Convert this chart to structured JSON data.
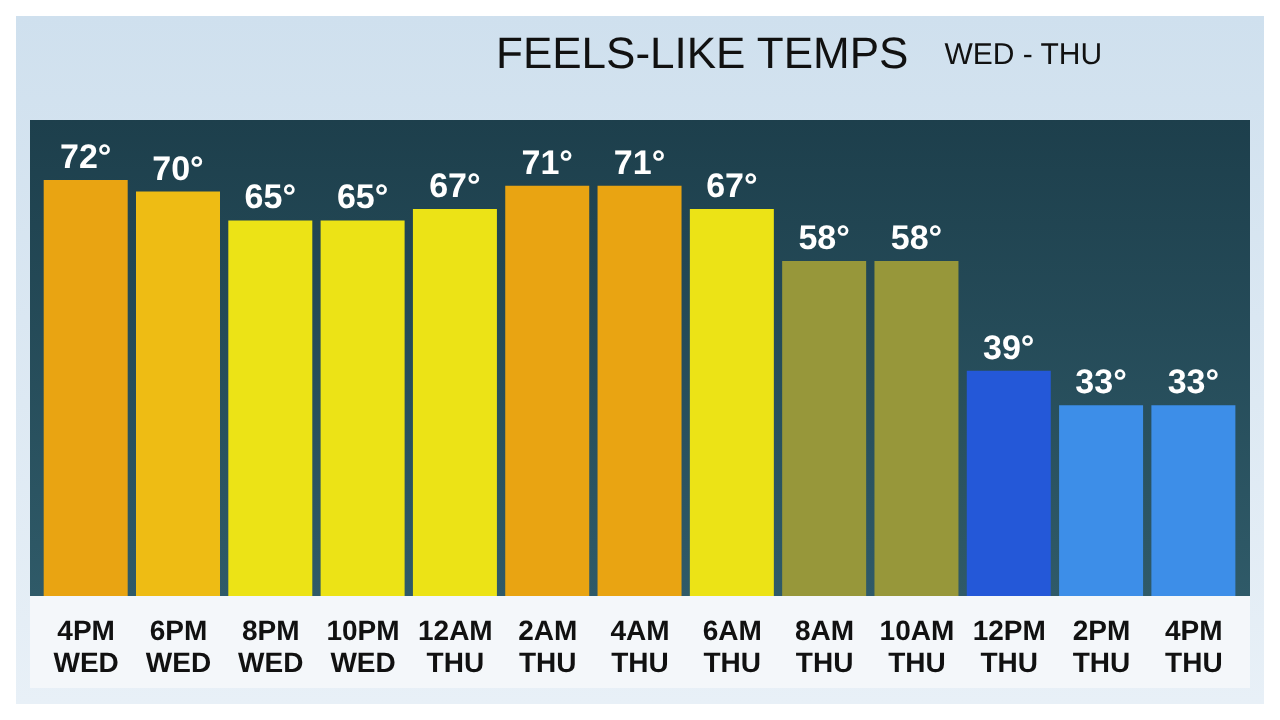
{
  "chart_data": {
    "type": "bar",
    "title": "FEELS-LIKE TEMPS",
    "subtitle": "WED - THU",
    "categories": [
      "4PM\nWED",
      "6PM\nWED",
      "8PM\nWED",
      "10PM\nWED",
      "12AM\nTHU",
      "2AM\nTHU",
      "4AM\nTHU",
      "6AM\nTHU",
      "8AM\nTHU",
      "10AM\nTHU",
      "12PM\nTHU",
      "2PM\nTHU",
      "4PM\nTHU"
    ],
    "values": [
      72,
      70,
      65,
      65,
      67,
      71,
      71,
      67,
      58,
      58,
      39,
      33,
      33
    ],
    "value_labels": [
      "72°",
      "70°",
      "65°",
      "65°",
      "67°",
      "71°",
      "71°",
      "67°",
      "58°",
      "58°",
      "39°",
      "33°",
      "33°"
    ],
    "colors": [
      "#e9a412",
      "#eebc14",
      "#ece316",
      "#ece316",
      "#ece316",
      "#e9a412",
      "#e9a412",
      "#ece316",
      "#97973a",
      "#97973a",
      "#2458d8",
      "#3d8ee8",
      "#3d8ee8"
    ],
    "tick_labels": "x"
  }
}
